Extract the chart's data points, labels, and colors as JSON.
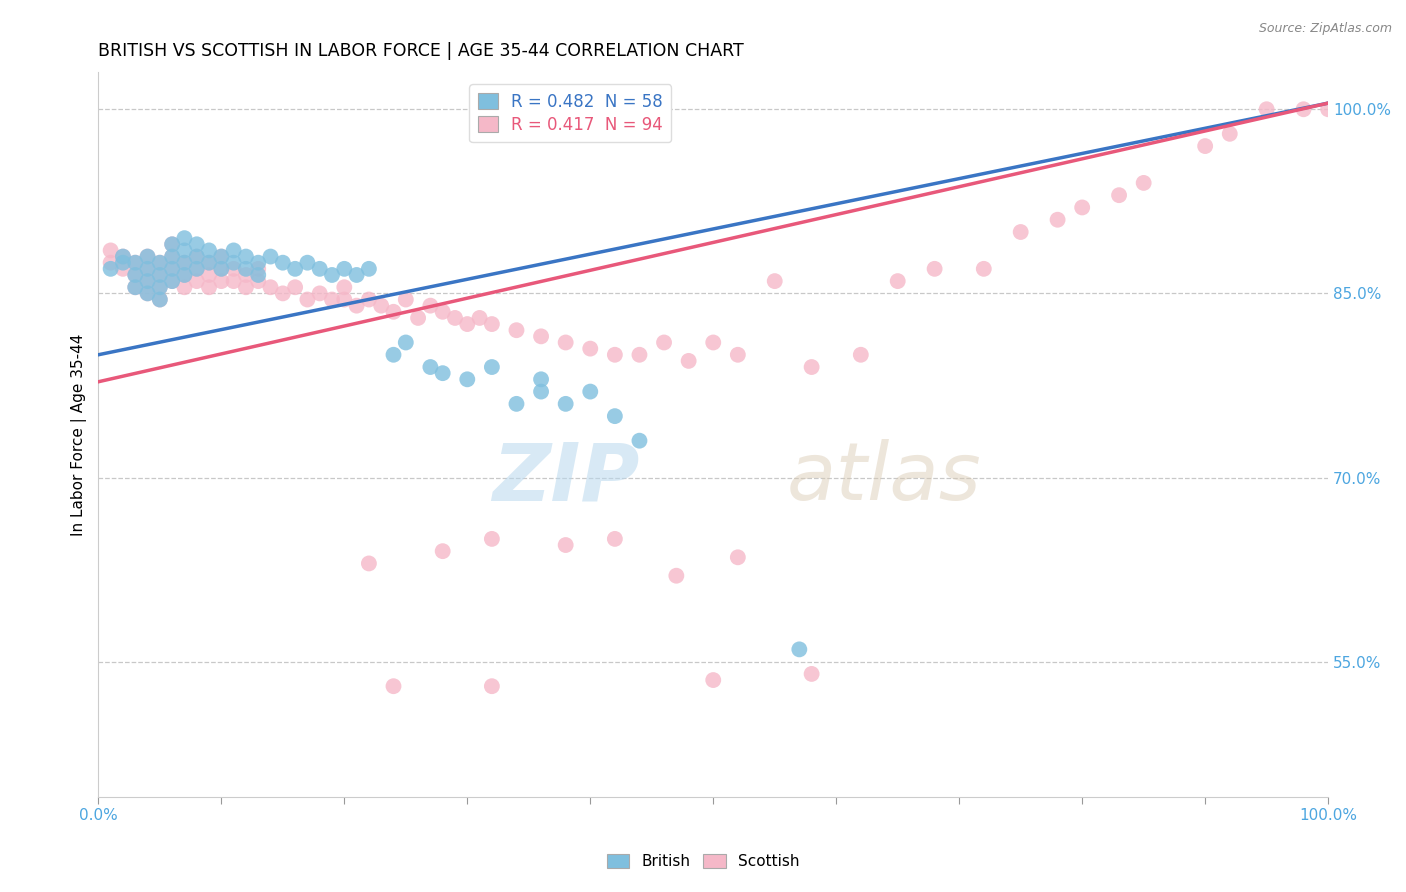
{
  "title": "BRITISH VS SCOTTISH IN LABOR FORCE | AGE 35-44 CORRELATION CHART",
  "source_text": "Source: ZipAtlas.com",
  "ylabel": "In Labor Force | Age 35-44",
  "xlim": [
    0.0,
    1.0
  ],
  "ylim": [
    0.44,
    1.03
  ],
  "yticks": [
    0.55,
    0.7,
    0.85,
    1.0
  ],
  "ytick_labels": [
    "55.0%",
    "70.0%",
    "85.0%",
    "100.0%"
  ],
  "xtick_vals": [
    0.0,
    0.1,
    0.2,
    0.3,
    0.4,
    0.5,
    0.6,
    0.7,
    0.8,
    0.9,
    1.0
  ],
  "british_R": 0.482,
  "british_N": 58,
  "scottish_R": 0.417,
  "scottish_N": 94,
  "british_color": "#7fbfde",
  "scottish_color": "#f5b8c8",
  "trend_british_color": "#3a75c4",
  "trend_scottish_color": "#e8587a",
  "legend_label_british": "British",
  "legend_label_scottish": "Scottish",
  "watermark_zip": "ZIP",
  "watermark_atlas": "atlas",
  "background_color": "#ffffff",
  "grid_color": "#c8c8c8",
  "title_fontsize": 12.5,
  "axis_label_color": "#4da6e0",
  "british_x": [
    0.01,
    0.02,
    0.02,
    0.03,
    0.03,
    0.03,
    0.04,
    0.04,
    0.04,
    0.04,
    0.05,
    0.05,
    0.05,
    0.05,
    0.06,
    0.06,
    0.06,
    0.06,
    0.07,
    0.07,
    0.07,
    0.07,
    0.08,
    0.08,
    0.08,
    0.09,
    0.09,
    0.1,
    0.1,
    0.11,
    0.11,
    0.12,
    0.12,
    0.13,
    0.13,
    0.14,
    0.15,
    0.16,
    0.17,
    0.18,
    0.19,
    0.2,
    0.21,
    0.22,
    0.24,
    0.25,
    0.27,
    0.28,
    0.3,
    0.32,
    0.34,
    0.36,
    0.36,
    0.38,
    0.4,
    0.42,
    0.44,
    0.57
  ],
  "british_y": [
    0.87,
    0.875,
    0.88,
    0.855,
    0.865,
    0.875,
    0.85,
    0.86,
    0.87,
    0.88,
    0.845,
    0.855,
    0.865,
    0.875,
    0.86,
    0.87,
    0.88,
    0.89,
    0.865,
    0.875,
    0.885,
    0.895,
    0.87,
    0.88,
    0.89,
    0.875,
    0.885,
    0.87,
    0.88,
    0.875,
    0.885,
    0.87,
    0.88,
    0.865,
    0.875,
    0.88,
    0.875,
    0.87,
    0.875,
    0.87,
    0.865,
    0.87,
    0.865,
    0.87,
    0.8,
    0.81,
    0.79,
    0.785,
    0.78,
    0.79,
    0.76,
    0.77,
    0.78,
    0.76,
    0.77,
    0.75,
    0.73,
    0.56
  ],
  "scottish_x": [
    0.01,
    0.01,
    0.02,
    0.02,
    0.03,
    0.03,
    0.03,
    0.04,
    0.04,
    0.04,
    0.04,
    0.05,
    0.05,
    0.05,
    0.05,
    0.06,
    0.06,
    0.06,
    0.06,
    0.07,
    0.07,
    0.07,
    0.08,
    0.08,
    0.08,
    0.09,
    0.09,
    0.09,
    0.1,
    0.1,
    0.1,
    0.11,
    0.11,
    0.12,
    0.12,
    0.13,
    0.13,
    0.14,
    0.15,
    0.16,
    0.17,
    0.18,
    0.19,
    0.2,
    0.2,
    0.21,
    0.22,
    0.23,
    0.24,
    0.25,
    0.26,
    0.27,
    0.28,
    0.29,
    0.3,
    0.31,
    0.32,
    0.34,
    0.36,
    0.38,
    0.4,
    0.42,
    0.44,
    0.46,
    0.48,
    0.5,
    0.52,
    0.55,
    0.58,
    0.62,
    0.65,
    0.68,
    0.72,
    0.75,
    0.78,
    0.8,
    0.83,
    0.85,
    0.9,
    0.92,
    0.95,
    0.98,
    1.0,
    0.22,
    0.28,
    0.32,
    0.38,
    0.42,
    0.47,
    0.52,
    0.24,
    0.32,
    0.5,
    0.58
  ],
  "scottish_y": [
    0.875,
    0.885,
    0.87,
    0.88,
    0.855,
    0.865,
    0.875,
    0.85,
    0.86,
    0.87,
    0.88,
    0.845,
    0.855,
    0.865,
    0.875,
    0.86,
    0.87,
    0.88,
    0.89,
    0.855,
    0.865,
    0.875,
    0.86,
    0.87,
    0.88,
    0.855,
    0.865,
    0.875,
    0.86,
    0.87,
    0.88,
    0.86,
    0.87,
    0.855,
    0.865,
    0.86,
    0.87,
    0.855,
    0.85,
    0.855,
    0.845,
    0.85,
    0.845,
    0.845,
    0.855,
    0.84,
    0.845,
    0.84,
    0.835,
    0.845,
    0.83,
    0.84,
    0.835,
    0.83,
    0.825,
    0.83,
    0.825,
    0.82,
    0.815,
    0.81,
    0.805,
    0.8,
    0.8,
    0.81,
    0.795,
    0.81,
    0.8,
    0.86,
    0.79,
    0.8,
    0.86,
    0.87,
    0.87,
    0.9,
    0.91,
    0.92,
    0.93,
    0.94,
    0.97,
    0.98,
    1.0,
    1.0,
    1.0,
    0.63,
    0.64,
    0.65,
    0.645,
    0.65,
    0.62,
    0.635,
    0.53,
    0.53,
    0.535,
    0.54
  ],
  "trend_british_x0": 0.0,
  "trend_british_y0": 0.8,
  "trend_british_x1": 1.0,
  "trend_british_y1": 1.005,
  "trend_scottish_x0": 0.0,
  "trend_scottish_y0": 0.778,
  "trend_scottish_x1": 1.0,
  "trend_scottish_y1": 1.005
}
